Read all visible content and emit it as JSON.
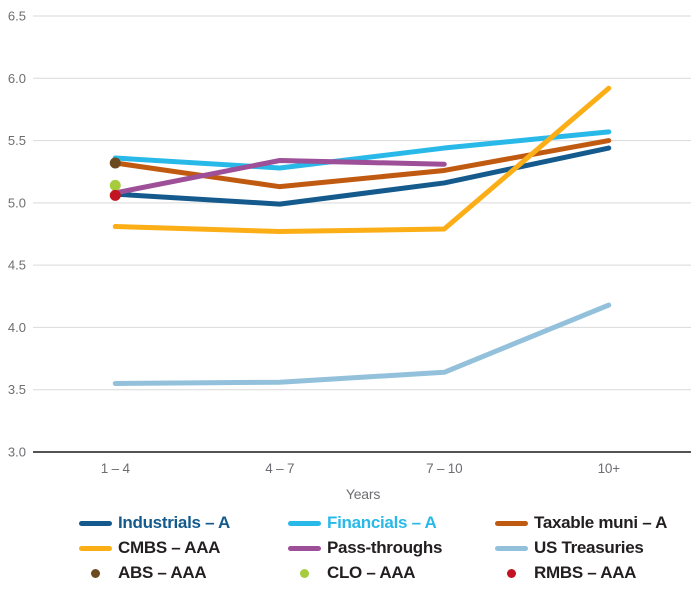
{
  "chart_data": {
    "type": "line",
    "title": "",
    "xlabel": "Years",
    "categories": [
      "1 – 4",
      "4 – 7",
      "7 – 10",
      "10+"
    ],
    "ylim": [
      3.0,
      6.5
    ],
    "ytick_step": 0.5,
    "grid": true,
    "legend_position": "bottom",
    "series": [
      {
        "name": "Industrials – A",
        "color": "#155a8d",
        "values": [
          5.07,
          4.99,
          5.16,
          5.44
        ]
      },
      {
        "name": "Financials – A",
        "color": "#29b9e9",
        "values": [
          5.36,
          5.28,
          5.44,
          5.57
        ]
      },
      {
        "name": "Taxable muni – A",
        "color": "#c15a11",
        "values": [
          5.32,
          5.13,
          5.26,
          5.5
        ]
      },
      {
        "name": "Pass-throughs",
        "color": "#9d4f97",
        "values": [
          5.08,
          5.34,
          5.31,
          null
        ]
      },
      {
        "name": "CMBS – AAA",
        "color": "#fcae17",
        "values": [
          4.81,
          4.77,
          4.79,
          5.92
        ]
      },
      {
        "name": "US Treasuries",
        "color": "#93c0db",
        "values": [
          3.55,
          3.56,
          3.64,
          4.18
        ]
      }
    ],
    "markers": [
      {
        "name": "ABS – AAA",
        "color": "#6c4a1f",
        "category_index": 0,
        "value": 5.32
      },
      {
        "name": "CLO – AAA",
        "color": "#a6cb3c",
        "category_index": 0,
        "value": 5.14
      },
      {
        "name": "RMBS – AAA",
        "color": "#c11420",
        "category_index": 0,
        "value": 5.06
      }
    ]
  },
  "axis_style": {
    "tick_label_color": "#6d6e71",
    "grid_color": "#d9d9da",
    "baseline_color": "#1a1a1a"
  },
  "legend": {
    "items": [
      {
        "label": "Industrials – A",
        "swatch": "line",
        "color": "#155a8d",
        "label_color": "#155a8d"
      },
      {
        "label": "Financials – A",
        "swatch": "line",
        "color": "#29b9e9",
        "label_color": "#29b9e9"
      },
      {
        "label": "Taxable muni – A",
        "swatch": "line",
        "color": "#c15a11",
        "label_color": "#231f20"
      },
      {
        "label": "CMBS – AAA",
        "swatch": "line",
        "color": "#fcae17",
        "label_color": "#231f20"
      },
      {
        "label": "Pass-throughs",
        "swatch": "line",
        "color": "#9d4f97",
        "label_color": "#231f20"
      },
      {
        "label": "US Treasuries",
        "swatch": "line",
        "color": "#93c0db",
        "label_color": "#231f20"
      },
      {
        "label": "ABS – AAA",
        "swatch": "dot",
        "color": "#6c4a1f",
        "label_color": "#231f20"
      },
      {
        "label": "CLO – AAA",
        "swatch": "dot",
        "color": "#a6cb3c",
        "label_color": "#231f20"
      },
      {
        "label": "RMBS – AAA",
        "swatch": "dot",
        "color": "#c11420",
        "label_color": "#231f20"
      }
    ]
  }
}
